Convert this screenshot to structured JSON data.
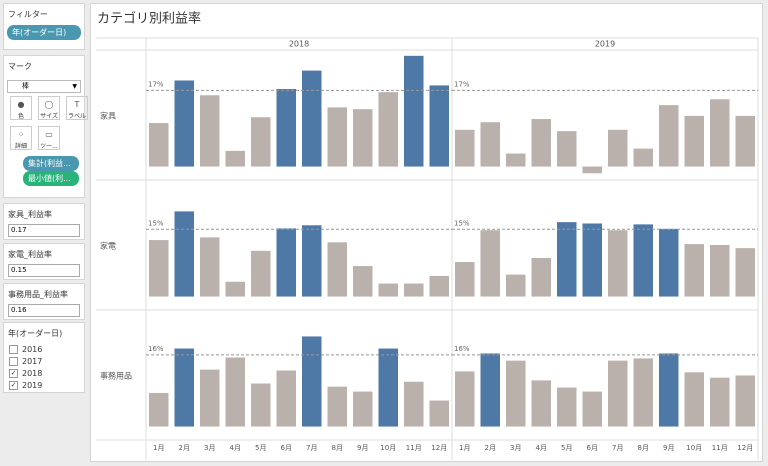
{
  "sidebar": {
    "filters": {
      "title": "フィルター",
      "pill": "年(オーダー日)"
    },
    "marks": {
      "title": "マーク",
      "mark_type": "棒",
      "buttons": [
        "色",
        "サイズ",
        "ラベル",
        "詳細",
        "ツー..."
      ],
      "pills": [
        "集計(利益...",
        "最小値(利..."
      ]
    },
    "parameters": [
      {
        "name": "家具_利益率",
        "value": 0.17
      },
      {
        "name": "家電_利益率",
        "value": 0.15
      },
      {
        "name": "事務用品_利益率",
        "value": 0.16
      }
    ],
    "year_filter": {
      "title": "年(オーダー日)",
      "items": [
        {
          "label": "2016",
          "checked": false
        },
        {
          "label": "2017",
          "checked": false
        },
        {
          "label": "2018",
          "checked": true
        },
        {
          "label": "2019",
          "checked": true
        }
      ]
    }
  },
  "chart_data": {
    "type": "bar",
    "title": "カテゴリ別利益率",
    "columns": [
      "2018",
      "2019"
    ],
    "categories": [
      "1月",
      "2月",
      "3月",
      "4月",
      "5月",
      "6月",
      "7月",
      "8月",
      "9月",
      "10月",
      "11月",
      "12月"
    ],
    "ylim": [
      -3,
      26
    ],
    "colors": {
      "above": "#4e79a7",
      "below": "#bab0ac"
    },
    "panels": [
      {
        "name": "家具",
        "reference": {
          "value": 17,
          "label": "17%"
        },
        "values": [
          [
            9.7,
            19.2,
            15.9,
            3.5,
            11.0,
            17.3,
            21.4,
            13.2,
            12.8,
            16.6,
            24.7,
            18.1
          ],
          [
            8.2,
            9.9,
            2.9,
            10.6,
            7.9,
            -1.5,
            8.2,
            4.0,
            13.7,
            11.3,
            15.0,
            11.3
          ]
        ]
      },
      {
        "name": "家電",
        "reference": {
          "value": 15,
          "label": "15%"
        },
        "values": [
          [
            12.6,
            19.0,
            13.2,
            3.3,
            10.2,
            15.2,
            15.9,
            12.1,
            6.8,
            2.9,
            2.9,
            4.6
          ],
          [
            7.7,
            14.8,
            4.9,
            8.6,
            16.6,
            16.3,
            14.8,
            16.1,
            15.1,
            11.7,
            11.5,
            10.8
          ]
        ]
      },
      {
        "name": "事務用品",
        "reference": {
          "value": 16,
          "label": "16%"
        },
        "values": [
          [
            7.5,
            17.4,
            12.7,
            15.4,
            9.6,
            12.5,
            20.1,
            8.9,
            7.8,
            17.4,
            10.0,
            5.8
          ],
          [
            12.3,
            16.3,
            14.7,
            10.3,
            8.7,
            7.8,
            14.7,
            15.2,
            16.3,
            12.1,
            10.9,
            11.4
          ]
        ]
      }
    ]
  }
}
